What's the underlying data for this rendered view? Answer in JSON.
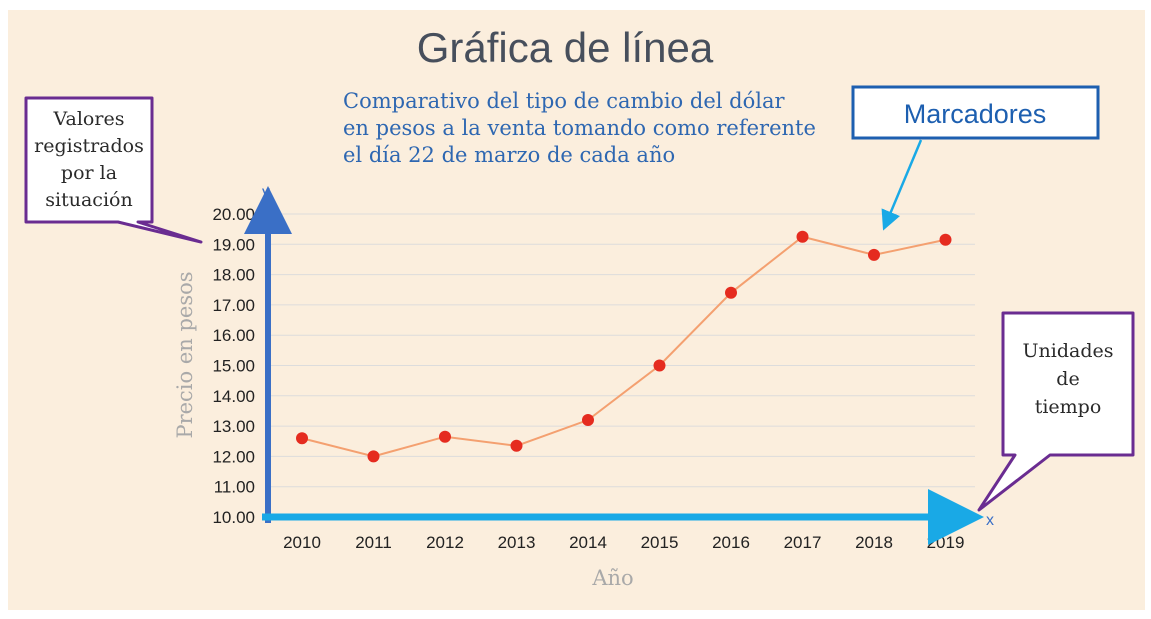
{
  "page": {
    "heading": "Gráfica de línea",
    "callouts": {
      "left": [
        "Valores",
        "registrados",
        "por la",
        "situación"
      ],
      "right": [
        "Unidades",
        "de",
        "tiempo"
      ],
      "markers": "Marcadores"
    }
  },
  "chart_data": {
    "type": "line",
    "title_lines": [
      "Comparativo del tipo de cambio del dólar",
      "en pesos a la venta tomando como referente",
      "el día 22 de marzo de cada año"
    ],
    "xlabel": "Año",
    "ylabel": "Precio en pesos",
    "x_axis_letter": "x",
    "y_axis_letter": "y",
    "ylim": [
      10,
      20
    ],
    "yticks": [
      "10.00",
      "11.00",
      "12.00",
      "13.00",
      "14.00",
      "15.00",
      "16.00",
      "17.00",
      "18.00",
      "19.00",
      "20.00"
    ],
    "categories": [
      "2010",
      "2011",
      "2012",
      "2013",
      "2014",
      "2015",
      "2016",
      "2017",
      "2018",
      "2019"
    ],
    "values": [
      12.6,
      12.0,
      12.65,
      12.35,
      13.2,
      15.0,
      17.4,
      19.25,
      18.65,
      19.15
    ],
    "grid": true,
    "colors": {
      "background": "#fbeedd",
      "line": "#f4a070",
      "marker": "#e52b1f",
      "y_axis": "#3a6fc6",
      "x_axis": "#19a9e6",
      "grid": "#dcdcdc",
      "title": "#2e67b1",
      "callout_border": "#6a2c91",
      "markers_box": "#1d5fb0",
      "heading": "#474f5c"
    }
  }
}
